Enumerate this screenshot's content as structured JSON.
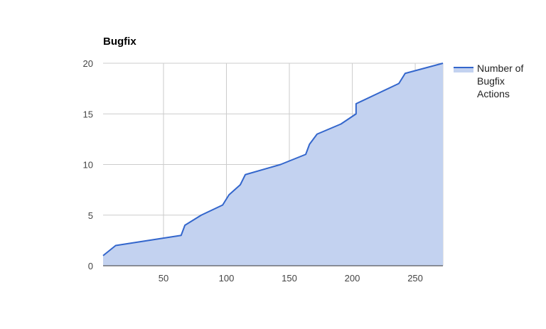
{
  "chart_data": {
    "type": "area",
    "title": "Bugfix",
    "xlabel": "",
    "ylabel": "",
    "xlim": [
      2,
      272
    ],
    "ylim": [
      0,
      20
    ],
    "x_ticks": [
      50,
      100,
      150,
      200,
      250
    ],
    "y_ticks": [
      0,
      5,
      10,
      15,
      20
    ],
    "grid": true,
    "legend_position": "right",
    "colors": {
      "line": "#3366cc",
      "fill": "#c3d2f0",
      "grid": "#cccccc",
      "axis": "#333333"
    },
    "series": [
      {
        "name": "Number of Bugfix Actions",
        "legend_lines": [
          "Number of",
          "Bugfix",
          "Actions"
        ],
        "points": [
          [
            2,
            1
          ],
          [
            12,
            2
          ],
          [
            64,
            3
          ],
          [
            67,
            4
          ],
          [
            80,
            5
          ],
          [
            97,
            6
          ],
          [
            102,
            7
          ],
          [
            111,
            8
          ],
          [
            115,
            9
          ],
          [
            143,
            10
          ],
          [
            163,
            11
          ],
          [
            166,
            12
          ],
          [
            172,
            13
          ],
          [
            191,
            14
          ],
          [
            203,
            15
          ],
          [
            203,
            16
          ],
          [
            220,
            17
          ],
          [
            237,
            18
          ],
          [
            242,
            19
          ],
          [
            272,
            20
          ]
        ]
      }
    ]
  }
}
